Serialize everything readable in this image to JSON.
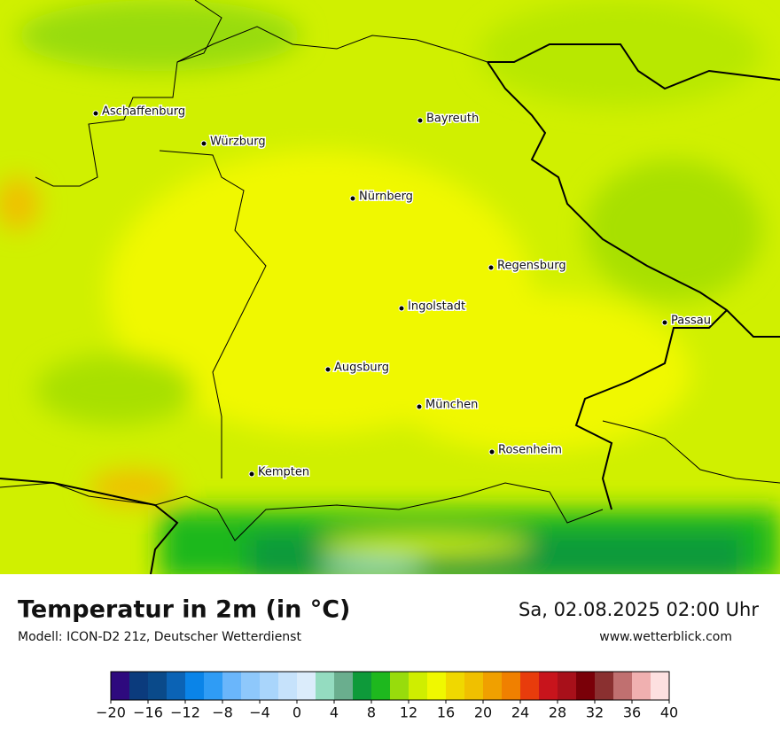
{
  "map": {
    "title": "Temperatur in 2m (in °C)",
    "subtitle": "Modell: ICON-D2 21z, Deutscher Wetterdienst",
    "datetime": "Sa, 02.08.2025 02:00 Uhr",
    "website": "www.wetterblick.com",
    "cities": [
      "Aschaffenburg",
      "Würzburg",
      "Bayreuth",
      "Nürnberg",
      "Regensburg",
      "Ingolstadt",
      "Passau",
      "Augsburg",
      "München",
      "Rosenheim",
      "Kempten"
    ],
    "colorbar": {
      "bins": [
        -20,
        -18,
        -16,
        -14,
        -12,
        -10,
        -8,
        -6,
        -4,
        -2,
        0,
        2,
        4,
        6,
        8,
        10,
        12,
        14,
        16,
        18,
        20,
        22,
        24,
        26,
        28,
        30,
        32,
        34,
        36,
        38,
        40
      ],
      "colors": [
        "#2e0a7e",
        "#0b3b7d",
        "#0a4a8a",
        "#0b63b5",
        "#0a84e8",
        "#2f9cf5",
        "#6ab6fb",
        "#8ec8fb",
        "#a9d5fb",
        "#c6e2fb",
        "#dbecfb",
        "#94dcc0",
        "#6aae8e",
        "#0e9a3a",
        "#1eb81e",
        "#98dc0c",
        "#cfee00",
        "#f0f800",
        "#f0d800",
        "#f0c000",
        "#f0a000",
        "#f08000",
        "#e83c0c",
        "#c8141c",
        "#a8101a",
        "#7a0008",
        "#8a3030",
        "#c07070",
        "#f0b0b0",
        "#fde0e0"
      ],
      "ticks": [
        {
          "value": -20,
          "label": "−20"
        },
        {
          "value": -16,
          "label": "−16"
        },
        {
          "value": -12,
          "label": "−12"
        },
        {
          "value": -8,
          "label": "−8"
        },
        {
          "value": -4,
          "label": "−4"
        },
        0,
        4,
        8,
        12,
        16,
        20,
        24,
        28,
        32,
        36,
        40
      ]
    }
  }
}
